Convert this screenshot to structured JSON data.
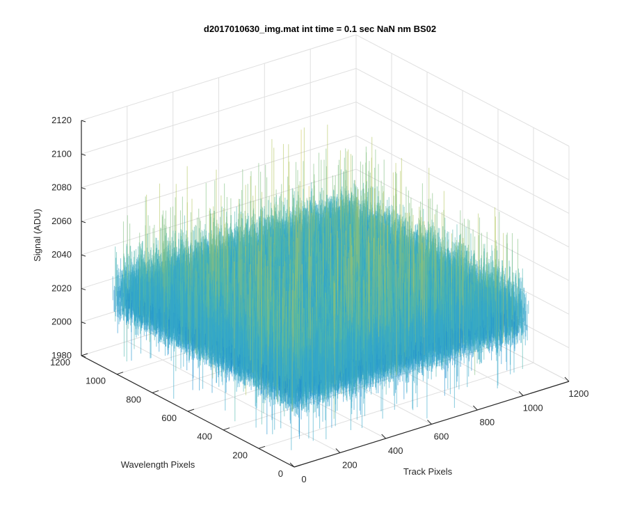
{
  "chart_data": {
    "type": "surface",
    "title": "d2017010630_img.mat int time = 0.1 sec  NaN nm BS02",
    "xlabel": "Track Pixels",
    "ylabel": "Wavelength Pixels",
    "zlabel": "Signal (ADU)",
    "xlim": [
      0,
      1200
    ],
    "ylim": [
      0,
      1200
    ],
    "zlim": [
      1980,
      2120
    ],
    "x_ticks": [
      0,
      200,
      400,
      600,
      800,
      1000,
      1200
    ],
    "y_ticks": [
      0,
      200,
      400,
      600,
      800,
      1000,
      1200
    ],
    "z_ticks": [
      1980,
      2000,
      2020,
      2040,
      2060,
      2080,
      2100,
      2120
    ],
    "x_tick_labels": [
      "0",
      "200",
      "400",
      "600",
      "800",
      "1000",
      "1200"
    ],
    "y_tick_labels": [
      "0",
      "200",
      "400",
      "600",
      "800",
      "1000",
      "1200"
    ],
    "z_tick_labels": [
      "1980",
      "2000",
      "2020",
      "2040",
      "2060",
      "2080",
      "2100",
      "2120"
    ],
    "data_extent": {
      "x": [
        1,
        1024
      ],
      "y": [
        1,
        1024
      ]
    },
    "signal_baseline": 2025,
    "signal_range": [
      1983,
      2112
    ],
    "grid": true,
    "colormap": [
      "#0072bd",
      "#1f8fd0",
      "#34a7c9",
      "#4fb7ad",
      "#7fc07e",
      "#b5c760",
      "#d6c95a"
    ]
  }
}
